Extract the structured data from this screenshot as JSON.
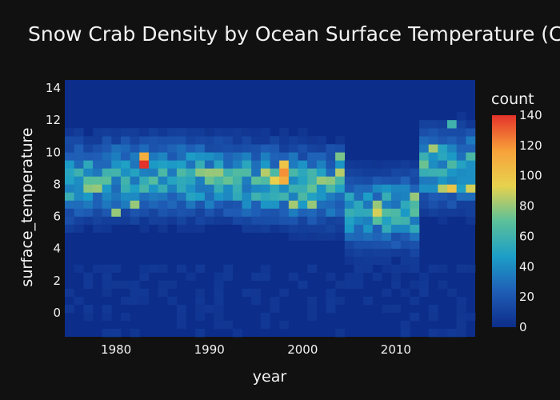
{
  "chart_data": {
    "type": "heatmap",
    "title": "Snow Crab Density by Ocean Surface Temperature (Celsi",
    "xlabel": "year",
    "ylabel": "surface_temperature",
    "x_range": [
      1974.5,
      2018.5
    ],
    "y_range": [
      -1.5,
      14.5
    ],
    "x_ticks": [
      "1980",
      "1990",
      "2000",
      "2010"
    ],
    "y_ticks": [
      "0",
      "2",
      "4",
      "6",
      "8",
      "10",
      "12",
      "14"
    ],
    "x_tick_values": [
      1980,
      1990,
      2000,
      2010
    ],
    "y_tick_values": [
      0,
      2,
      4,
      6,
      8,
      10,
      12,
      14
    ],
    "bin_width_years": 1,
    "bin_height_celsius": 0.5,
    "colorbar": {
      "title": "count",
      "range": [
        0,
        140
      ],
      "ticks": [
        "0",
        "20",
        "40",
        "60",
        "80",
        "100",
        "120",
        "140"
      ],
      "tick_values": [
        0,
        20,
        40,
        60,
        80,
        100,
        120,
        140
      ],
      "colors": [
        "#0d2d8a",
        "#1f5db6",
        "#1c9ec7",
        "#5bc09a",
        "#e7d24d",
        "#f7a13a",
        "#e4332a"
      ]
    },
    "plot_background": "#0d2d8a",
    "hot_spots": [
      {
        "x": 1983,
        "y": 9.25,
        "count": 140
      },
      {
        "x": 1983,
        "y": 9.75,
        "count": 110
      },
      {
        "x": 1998,
        "y": 8.75,
        "count": 120
      },
      {
        "x": 1998,
        "y": 8.25,
        "count": 110
      },
      {
        "x": 1997,
        "y": 8.25,
        "count": 95
      },
      {
        "x": 1998,
        "y": 9.25,
        "count": 100
      },
      {
        "x": 1996,
        "y": 8.75,
        "count": 85
      },
      {
        "x": 2016,
        "y": 7.75,
        "count": 100
      },
      {
        "x": 2015,
        "y": 7.75,
        "count": 85
      },
      {
        "x": 2008,
        "y": 6.25,
        "count": 90
      },
      {
        "x": 2008,
        "y": 6.75,
        "count": 80
      },
      {
        "x": 2004,
        "y": 8.75,
        "count": 85
      },
      {
        "x": 2004,
        "y": 9.75,
        "count": 75
      },
      {
        "x": 1990,
        "y": 8.75,
        "count": 80
      },
      {
        "x": 1991,
        "y": 8.75,
        "count": 80
      },
      {
        "x": 1989,
        "y": 8.75,
        "count": 78
      },
      {
        "x": 1977,
        "y": 7.75,
        "count": 78
      },
      {
        "x": 1978,
        "y": 7.75,
        "count": 80
      },
      {
        "x": 1980,
        "y": 6.25,
        "count": 80
      },
      {
        "x": 1982,
        "y": 6.75,
        "count": 80
      },
      {
        "x": 2018,
        "y": 7.75,
        "count": 90
      },
      {
        "x": 2014,
        "y": 10.25,
        "count": 82
      },
      {
        "x": 2016,
        "y": 11.75,
        "count": 60
      },
      {
        "x": 2002,
        "y": 8.25,
        "count": 80
      },
      {
        "x": 2003,
        "y": 8.25,
        "count": 78
      },
      {
        "x": 2001,
        "y": 6.75,
        "count": 80
      },
      {
        "x": 1999,
        "y": 6.75,
        "count": 82
      },
      {
        "x": 2012,
        "y": 7.25,
        "count": 80
      }
    ]
  }
}
